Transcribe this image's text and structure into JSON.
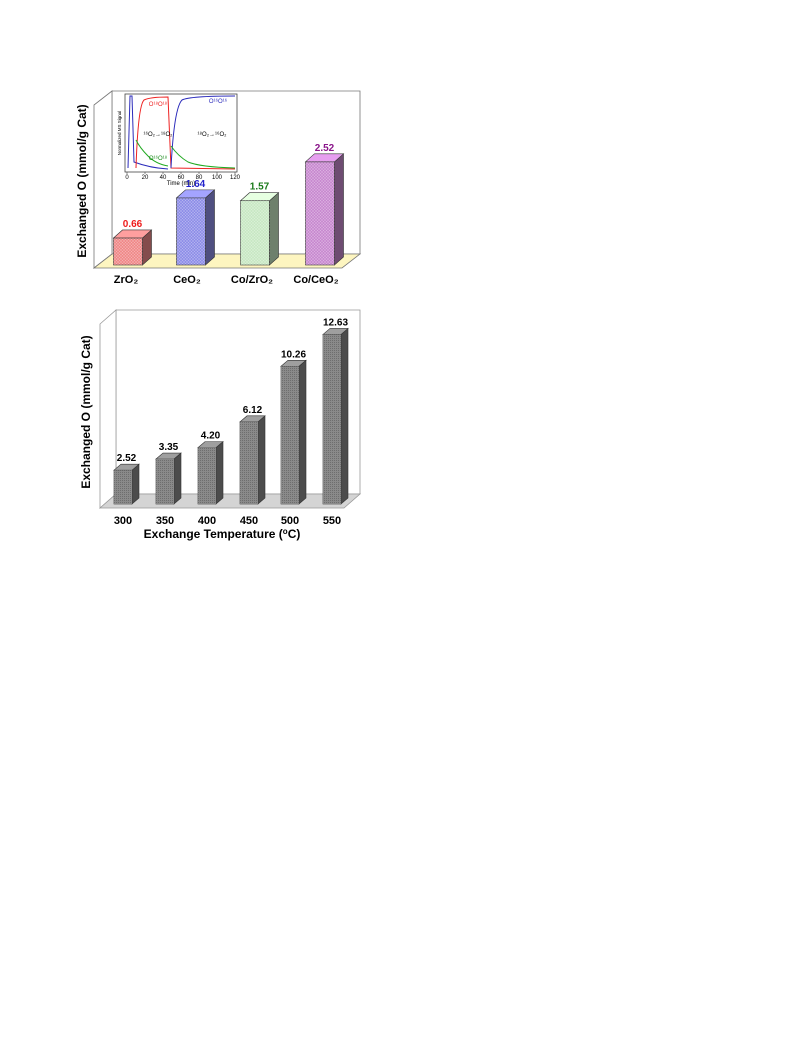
{
  "chart_data": [
    {
      "type": "bar",
      "ylabel": "Exchanged O (mmol/g Cat)",
      "categories": [
        "ZrO₂",
        "CeO₂",
        "Co/ZrO₂",
        "Co/CeO₂"
      ],
      "values": [
        0.66,
        1.64,
        1.57,
        2.52
      ],
      "value_labels": [
        "0.66",
        "1.64",
        "1.57",
        "2.52"
      ],
      "colors": [
        "#f08a8a",
        "#8f8fe8",
        "#c8e8c4",
        "#c88ad0"
      ],
      "label_colors": [
        "#ee1c1c",
        "#2323cc",
        "#1a7a1a",
        "#8a158a"
      ],
      "floor_color": "#fdf5c0",
      "ylim": [
        0,
        3.2
      ],
      "inset": {
        "ylabel": "Normalized MS Signal",
        "xlabel": "Time (min)",
        "xticks": [
          "0",
          "20",
          "40",
          "60",
          "80",
          "100",
          "120"
        ],
        "annotations": {
          "o18o18": "O¹⁸O¹⁸",
          "o16o16": "O¹⁶O¹⁶",
          "o16o18": "O¹⁶O¹⁸",
          "switch1": "¹⁶O₂→¹⁸O₂",
          "switch2": "¹⁸O₂→¹⁶O₂"
        }
      }
    },
    {
      "type": "bar",
      "ylabel": "Exchanged O (mmol/g Cat)",
      "xlabel_main": "Exchange Temperature (",
      "xlabel_sup": "o",
      "xlabel_end": "C)",
      "categories": [
        "300",
        "350",
        "400",
        "450",
        "500",
        "550"
      ],
      "values": [
        2.52,
        3.35,
        4.2,
        6.12,
        10.26,
        12.63
      ],
      "value_labels": [
        "2.52",
        "3.35",
        "4.20",
        "6.12",
        "10.26",
        "12.63"
      ],
      "bar_color": "#8a8a8a",
      "floor_color": "#d4d4d4",
      "ylim": [
        0,
        14.6
      ]
    }
  ]
}
